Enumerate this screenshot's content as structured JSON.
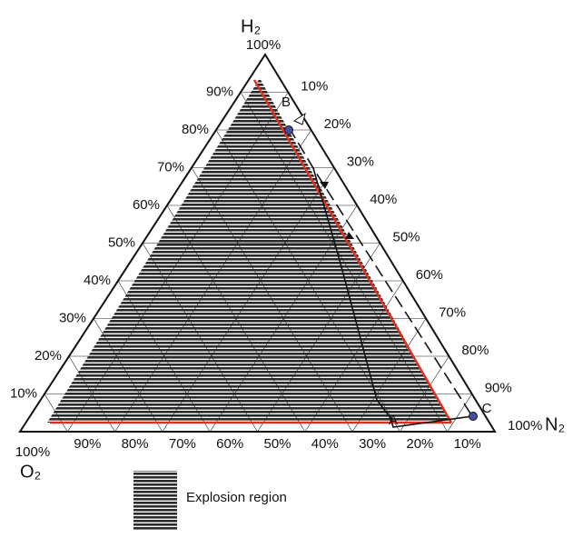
{
  "vertices": {
    "top": "H₂",
    "right": "N₂",
    "left": "O₂"
  },
  "top_label": "100%",
  "left_ticks": [
    "90%",
    "80%",
    "70%",
    "60%",
    "50%",
    "40%",
    "30%",
    "20%",
    "10%"
  ],
  "right_ticks": [
    "10%",
    "20%",
    "30%",
    "40%",
    "50%",
    "60%",
    "70%",
    "80%",
    "90%",
    "100%"
  ],
  "bottom_ticks": [
    "100%",
    "90%",
    "80%",
    "70%",
    "60%",
    "50%",
    "40%",
    "30%",
    "20%",
    "10%"
  ],
  "points": [
    "A",
    "B",
    "C"
  ],
  "legend": "Explosion region"
}
